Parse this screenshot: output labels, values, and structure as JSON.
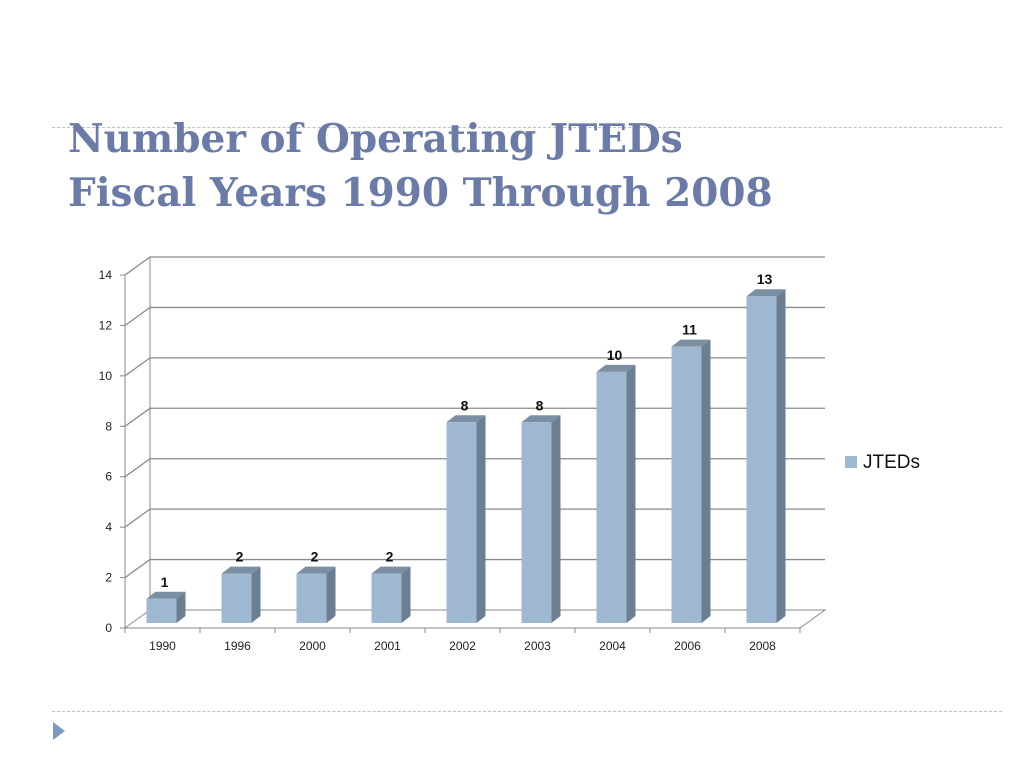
{
  "slide": {
    "title_line1": "Number of Operating JTEDs",
    "title_line2": "Fiscal Years 1990 Through 2008",
    "title_color": "#6b7ba8"
  },
  "chart_data": {
    "type": "bar",
    "categories": [
      "1990",
      "1996",
      "2000",
      "2001",
      "2002",
      "2003",
      "2004",
      "2006",
      "2008"
    ],
    "series": [
      {
        "name": "JTEDs",
        "values": [
          1,
          2,
          2,
          2,
          8,
          8,
          10,
          11,
          13
        ],
        "color": "#9fb8d1"
      }
    ],
    "ylim": [
      0,
      14
    ],
    "yticks": [
      0,
      2,
      4,
      6,
      8,
      10,
      12,
      14
    ],
    "grid": true,
    "legend": "right",
    "data_labels": true,
    "style": "3d-column"
  }
}
